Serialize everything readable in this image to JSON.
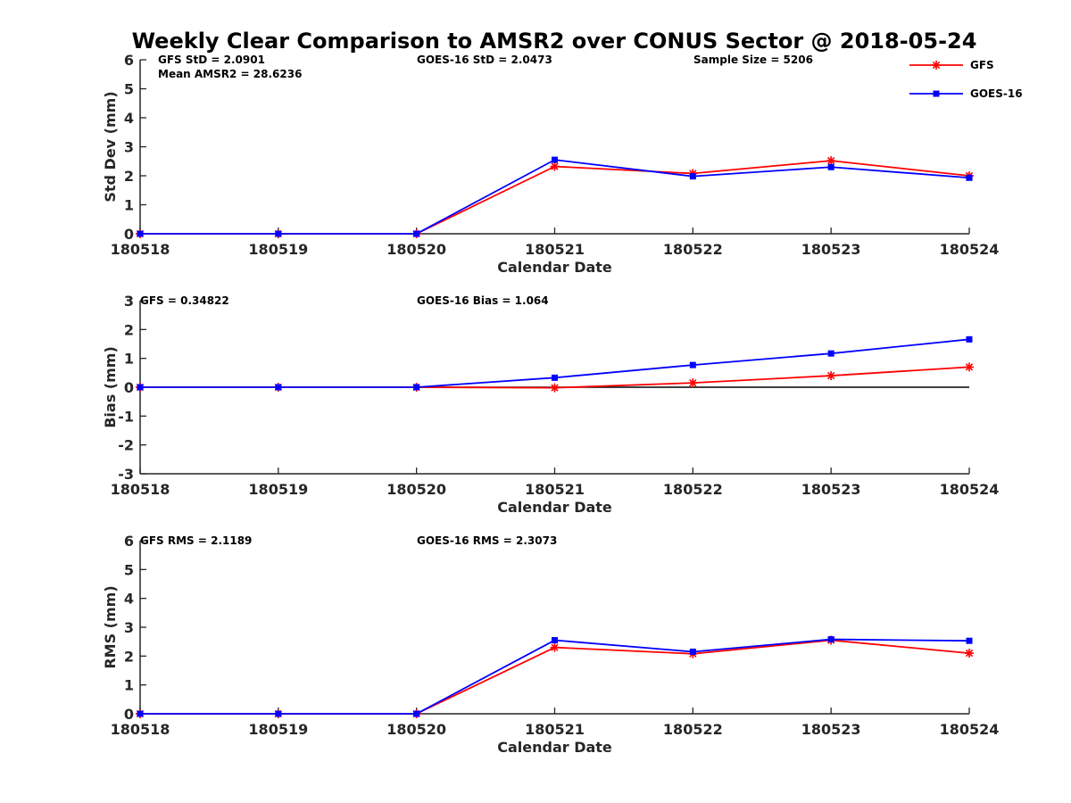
{
  "chart_data": [
    {
      "type": "line",
      "id": "std",
      "title": "Weekly Clear Comparison to AMSR2 over CONUS Sector @ 2018-05-24",
      "xlabel": "Calendar Date",
      "ylabel": "Std Dev (mm)",
      "categories": [
        "180518",
        "180519",
        "180520",
        "180521",
        "180522",
        "180523",
        "180524"
      ],
      "ylim": [
        0,
        6
      ],
      "yticks": [
        "0",
        "1",
        "2",
        "3",
        "4",
        "5",
        "6"
      ],
      "zero_line": false,
      "series": [
        {
          "name": "GFS",
          "color": "#ff0000",
          "marker": "asterisk",
          "values": [
            0,
            0,
            0,
            2.32,
            2.08,
            2.52,
            2.0
          ]
        },
        {
          "name": "GOES-16",
          "color": "#0000ff",
          "marker": "square",
          "values": [
            0,
            0,
            0,
            2.55,
            1.98,
            2.3,
            1.93
          ]
        }
      ],
      "annotations": [
        "GFS StD = 2.0901",
        "Mean AMSR2 = 28.6236",
        "GOES-16 StD = 2.0473",
        "Sample Size = 5206"
      ],
      "legend": [
        "GFS",
        "GOES-16"
      ]
    },
    {
      "type": "line",
      "id": "bias",
      "xlabel": "Calendar Date",
      "ylabel": "Bias (mm)",
      "categories": [
        "180518",
        "180519",
        "180520",
        "180521",
        "180522",
        "180523",
        "180524"
      ],
      "ylim": [
        -3,
        3
      ],
      "yticks": [
        "-3",
        "-2",
        "-1",
        "0",
        "1",
        "2",
        "3"
      ],
      "zero_line": true,
      "series": [
        {
          "name": "GFS",
          "color": "#ff0000",
          "marker": "asterisk",
          "values": [
            0,
            0,
            0,
            -0.02,
            0.15,
            0.4,
            0.7
          ]
        },
        {
          "name": "GOES-16",
          "color": "#0000ff",
          "marker": "square",
          "values": [
            0,
            0,
            0,
            0.33,
            0.77,
            1.17,
            1.66
          ]
        }
      ],
      "annotations": [
        "GFS = 0.34822",
        "GOES-16 Bias  = 1.064"
      ]
    },
    {
      "type": "line",
      "id": "rms",
      "xlabel": "Calendar Date",
      "ylabel": "RMS (mm)",
      "categories": [
        "180518",
        "180519",
        "180520",
        "180521",
        "180522",
        "180523",
        "180524"
      ],
      "ylim": [
        0,
        6
      ],
      "yticks": [
        "0",
        "1",
        "2",
        "3",
        "4",
        "5",
        "6"
      ],
      "zero_line": false,
      "series": [
        {
          "name": "GFS",
          "color": "#ff0000",
          "marker": "asterisk",
          "values": [
            0,
            0,
            0,
            2.3,
            2.08,
            2.55,
            2.1
          ]
        },
        {
          "name": "GOES-16",
          "color": "#0000ff",
          "marker": "square",
          "values": [
            0,
            0,
            0,
            2.55,
            2.15,
            2.58,
            2.53
          ]
        }
      ],
      "annotations": [
        "GFS RMS = 2.1189",
        "GOES-16 RMS = 2.3073"
      ]
    }
  ]
}
